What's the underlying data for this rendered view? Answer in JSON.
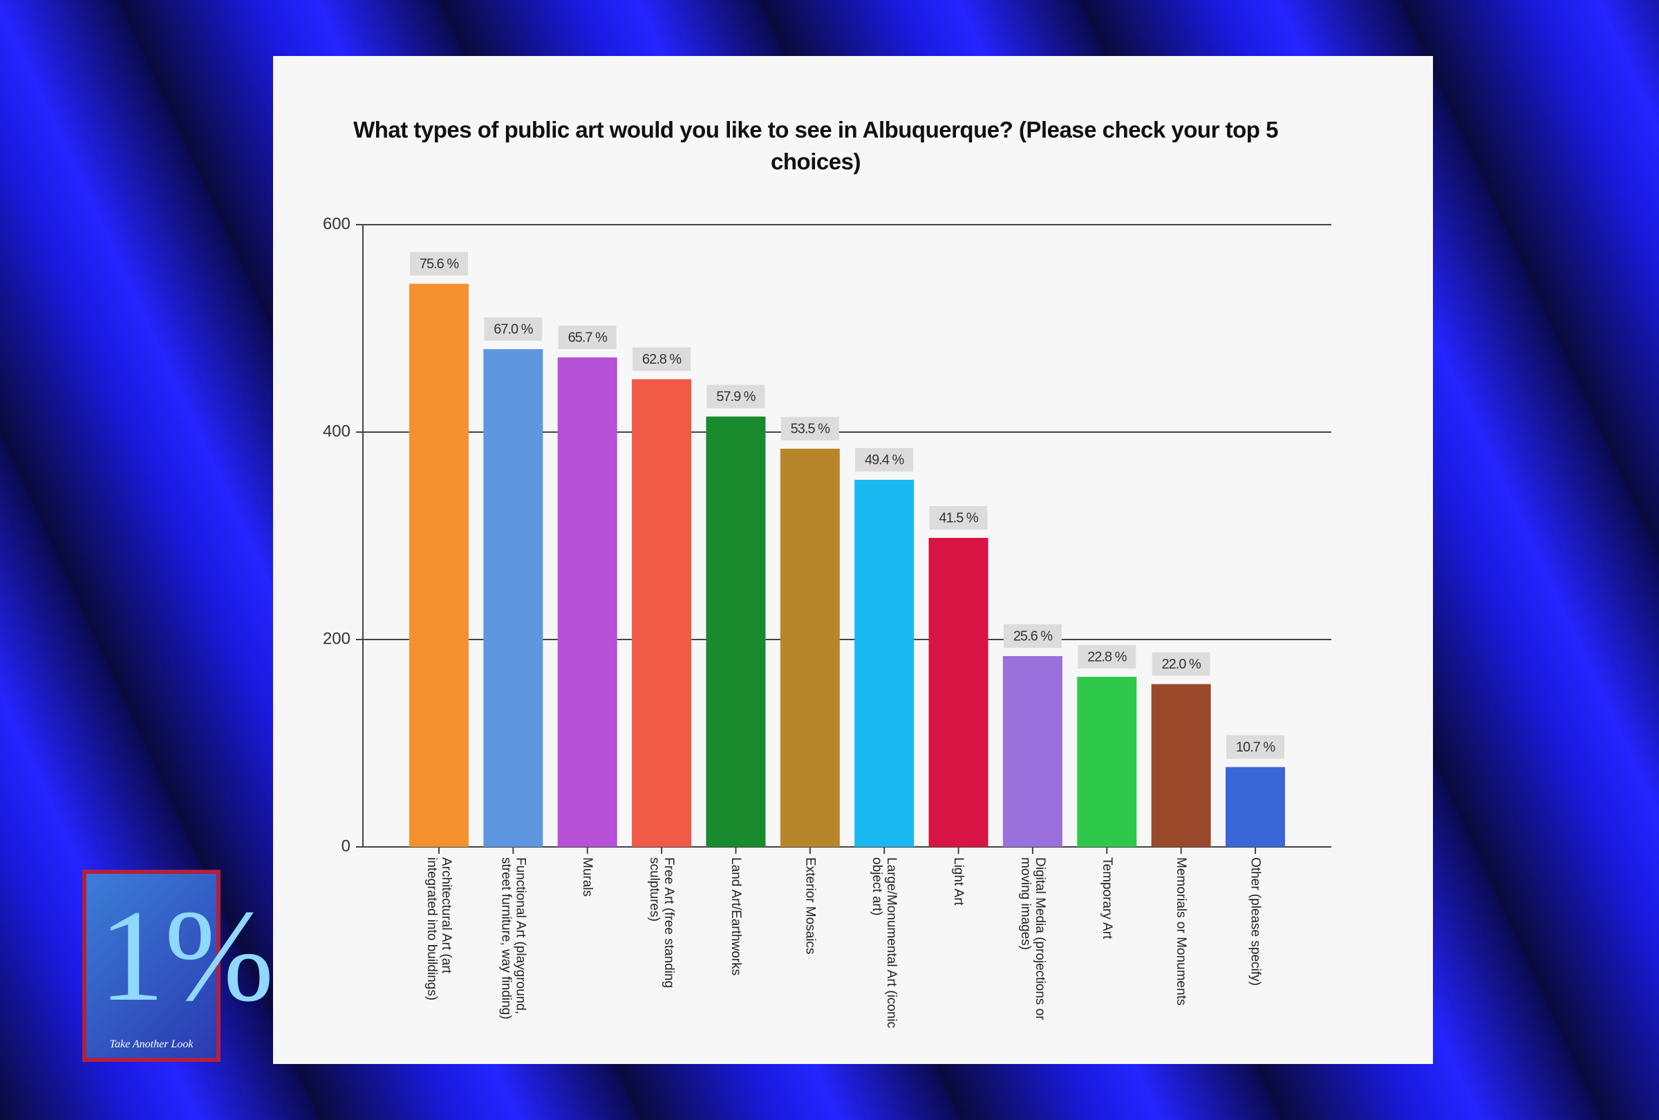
{
  "chart_data": {
    "type": "bar",
    "title": "What types of public art would you like to see in Albuquerque? (Please check your top 5 choices)",
    "categories": [
      "Architectural Art (art integrated into buildings)",
      "Functional Art (playground, street furniture, way finding)",
      "Murals",
      "Free Art (free standing sculptures)",
      "Land Art/Earthworks",
      "Exterior Mosaics",
      "Large/Monumental Art (iconic object art)",
      "Light Art",
      "Digital Media (projections or moving images)",
      "Temporary Art",
      "Memorials or Monuments",
      "Other (please specify)"
    ],
    "values": [
      543,
      480,
      472,
      451,
      415,
      384,
      354,
      298,
      184,
      164,
      157,
      77
    ],
    "annotations": [
      "75.6 %",
      "67.0 %",
      "65.7 %",
      "62.8 %",
      "57.9 %",
      "53.5 %",
      "49.4 %",
      "41.5 %",
      "25.6 %",
      "22.8 %",
      "22.0 %",
      "10.7 %"
    ],
    "colors": [
      "#f5902e",
      "#5f96e0",
      "#b650d6",
      "#f05a46",
      "#1a8a2e",
      "#b8862a",
      "#1ab8f0",
      "#d81444",
      "#9a70dc",
      "#2ec84a",
      "#9a4a2a",
      "#3a66d8"
    ],
    "ylim": [
      0,
      600
    ],
    "yticks": [
      0,
      200,
      400,
      600
    ],
    "grid": true
  },
  "logo": {
    "mark": "1%",
    "caption": "Take Another Look"
  }
}
